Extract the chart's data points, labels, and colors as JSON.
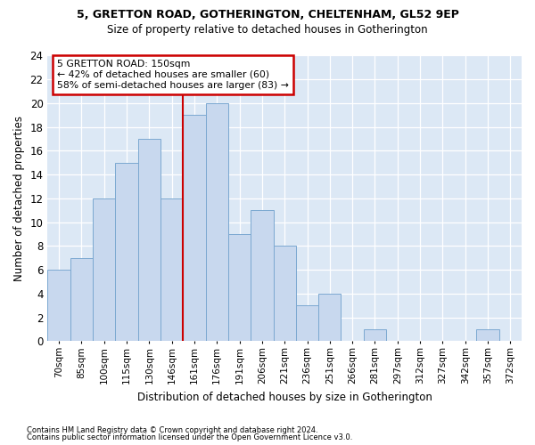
{
  "title1": "5, GRETTON ROAD, GOTHERINGTON, CHELTENHAM, GL52 9EP",
  "title2": "Size of property relative to detached houses in Gotherington",
  "xlabel": "Distribution of detached houses by size in Gotherington",
  "ylabel": "Number of detached properties",
  "categories": [
    "70sqm",
    "85sqm",
    "100sqm",
    "115sqm",
    "130sqm",
    "146sqm",
    "161sqm",
    "176sqm",
    "191sqm",
    "206sqm",
    "221sqm",
    "236sqm",
    "251sqm",
    "266sqm",
    "281sqm",
    "297sqm",
    "312sqm",
    "327sqm",
    "342sqm",
    "357sqm",
    "372sqm"
  ],
  "values": [
    6,
    7,
    12,
    15,
    17,
    12,
    19,
    20,
    9,
    11,
    8,
    3,
    4,
    0,
    1,
    0,
    0,
    0,
    0,
    1,
    0
  ],
  "bar_color": "#c8d8ee",
  "bar_edge_color": "#7ba8d0",
  "vline_index": 5,
  "annotation_line1": "5 GRETTON ROAD: 150sqm",
  "annotation_line2": "← 42% of detached houses are smaller (60)",
  "annotation_line3": "58% of semi-detached houses are larger (83) →",
  "annotation_box_facecolor": "#ffffff",
  "annotation_box_edgecolor": "#cc0000",
  "vline_color": "#cc0000",
  "footer1": "Contains HM Land Registry data © Crown copyright and database right 2024.",
  "footer2": "Contains public sector information licensed under the Open Government Licence v3.0.",
  "ylim_max": 24,
  "fig_bg_color": "#ffffff",
  "plot_bg_color": "#dce8f5"
}
